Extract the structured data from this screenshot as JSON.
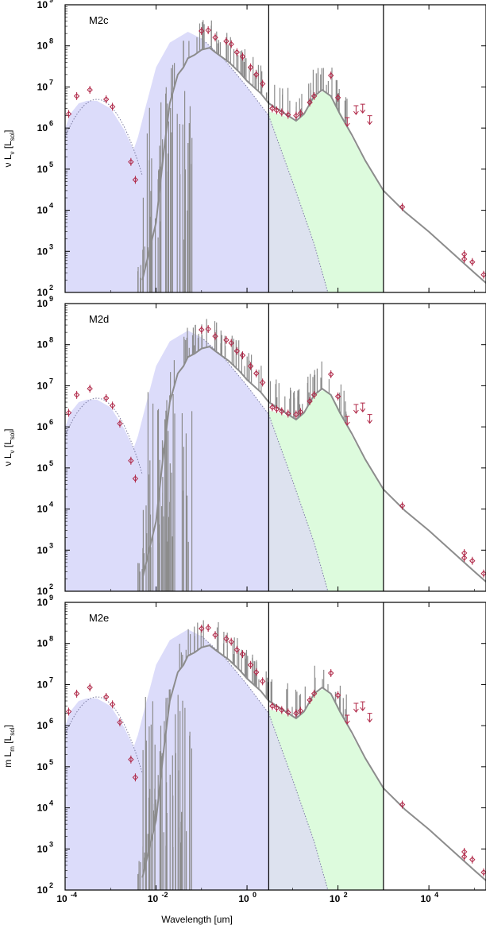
{
  "chart_data": {
    "type": "line",
    "x_scale": "log",
    "y_scale": "log",
    "xlim": [
      0.0001,
      180000
    ],
    "ylim": [
      100,
      1000000000
    ],
    "xlabel": "Wavelength [um]",
    "x_ticks": [
      "10^-4",
      "10^-2",
      "10^0",
      "10^2",
      "10^4"
    ],
    "y_ticks": [
      "10^2",
      "10^3",
      "10^4",
      "10^5",
      "10^6",
      "10^7",
      "10^8",
      "10^9"
    ],
    "vertical_lines": [
      3,
      1000
    ],
    "colors": {
      "sed_line": "#8c8c8c",
      "stellar_fill": "#dcdcfa",
      "dust_fill": "#ddfbdd",
      "overlap_fill": "#dde2ef",
      "observed_points": "#b02848",
      "stellar_curve": "#7a7aa0"
    },
    "panels": [
      {
        "label": "M2c",
        "ylabel": "ν L_ν [L_sol]",
        "ylabel_main": "ν L",
        "ylabel_sub": "ν",
        "ylabel_unit": "[L",
        "ylabel_unit_sub": "sol",
        "ylabel_close": "]",
        "points": [
          {
            "x": 0.00012,
            "y": 2200000
          },
          {
            "x": 0.00018,
            "y": 6000000
          },
          {
            "x": 0.00035,
            "y": 8500000
          },
          {
            "x": 0.0008,
            "y": 5000000
          },
          {
            "x": 0.0011,
            "y": 3300000
          },
          {
            "x": 0.0028,
            "y": 150000
          },
          {
            "x": 0.0035,
            "y": 55000
          },
          {
            "x": 0.1,
            "y": 230000000
          },
          {
            "x": 0.14,
            "y": 240000000
          },
          {
            "x": 0.2,
            "y": 160000000
          },
          {
            "x": 0.35,
            "y": 130000000
          },
          {
            "x": 0.45,
            "y": 110000000
          },
          {
            "x": 0.6,
            "y": 70000000
          },
          {
            "x": 0.8,
            "y": 55000000
          },
          {
            "x": 1.2,
            "y": 30000000
          },
          {
            "x": 1.6,
            "y": 20000000
          },
          {
            "x": 2.2,
            "y": 12000000
          },
          {
            "x": 3.6,
            "y": 3000000
          },
          {
            "x": 4.5,
            "y": 2700000
          },
          {
            "x": 5.8,
            "y": 2400000
          },
          {
            "x": 8,
            "y": 2100000
          },
          {
            "x": 12,
            "y": 2000000
          },
          {
            "x": 15,
            "y": 2300000
          },
          {
            "x": 24,
            "y": 4200000
          },
          {
            "x": 30,
            "y": 6000000
          },
          {
            "x": 70,
            "y": 19000000
          },
          {
            "x": 100,
            "y": 5500000
          },
          {
            "x": 2600,
            "y": 12000
          },
          {
            "x": 60000,
            "y": 850
          },
          {
            "x": 60000,
            "y": 650
          },
          {
            "x": 90000,
            "y": 550
          },
          {
            "x": 160000,
            "y": 270
          }
        ],
        "upper_limits": [
          {
            "x": 160,
            "y": 1800000
          },
          {
            "x": 250,
            "y": 3500000
          },
          {
            "x": 350,
            "y": 3800000
          },
          {
            "x": 500,
            "y": 2000000
          }
        ]
      },
      {
        "label": "M2d",
        "ylabel": "ν L_ν [L_sol]",
        "ylabel_main": "ν L",
        "ylabel_sub": "ν",
        "ylabel_unit": "[L",
        "ylabel_unit_sub": "sol",
        "ylabel_close": "]",
        "points": [
          {
            "x": 0.00012,
            "y": 2200000
          },
          {
            "x": 0.00018,
            "y": 6000000
          },
          {
            "x": 0.00035,
            "y": 8500000
          },
          {
            "x": 0.0008,
            "y": 5000000
          },
          {
            "x": 0.0011,
            "y": 3300000
          },
          {
            "x": 0.0016,
            "y": 1200000
          },
          {
            "x": 0.0028,
            "y": 150000
          },
          {
            "x": 0.0035,
            "y": 55000
          },
          {
            "x": 0.1,
            "y": 230000000
          },
          {
            "x": 0.14,
            "y": 240000000
          },
          {
            "x": 0.2,
            "y": 160000000
          },
          {
            "x": 0.35,
            "y": 130000000
          },
          {
            "x": 0.45,
            "y": 110000000
          },
          {
            "x": 0.6,
            "y": 70000000
          },
          {
            "x": 0.8,
            "y": 55000000
          },
          {
            "x": 1.2,
            "y": 30000000
          },
          {
            "x": 1.6,
            "y": 20000000
          },
          {
            "x": 2.2,
            "y": 12000000
          },
          {
            "x": 3.6,
            "y": 3000000
          },
          {
            "x": 4.5,
            "y": 2700000
          },
          {
            "x": 5.8,
            "y": 2400000
          },
          {
            "x": 8,
            "y": 2100000
          },
          {
            "x": 12,
            "y": 2000000
          },
          {
            "x": 15,
            "y": 2300000
          },
          {
            "x": 24,
            "y": 4200000
          },
          {
            "x": 30,
            "y": 6000000
          },
          {
            "x": 70,
            "y": 19000000
          },
          {
            "x": 100,
            "y": 5500000
          },
          {
            "x": 2600,
            "y": 12000
          },
          {
            "x": 60000,
            "y": 850
          },
          {
            "x": 60000,
            "y": 650
          },
          {
            "x": 90000,
            "y": 550
          },
          {
            "x": 160000,
            "y": 270
          }
        ],
        "upper_limits": [
          {
            "x": 160,
            "y": 1800000
          },
          {
            "x": 250,
            "y": 3500000
          },
          {
            "x": 350,
            "y": 3800000
          },
          {
            "x": 500,
            "y": 2000000
          }
        ]
      },
      {
        "label": "M2e",
        "ylabel": "m L_m [L_sol]",
        "ylabel_main": "m L",
        "ylabel_sub": "m",
        "ylabel_unit": "[L",
        "ylabel_unit_sub": "sol",
        "ylabel_close": "]",
        "points": [
          {
            "x": 0.00012,
            "y": 2200000
          },
          {
            "x": 0.00018,
            "y": 6000000
          },
          {
            "x": 0.00035,
            "y": 8500000
          },
          {
            "x": 0.0008,
            "y": 5000000
          },
          {
            "x": 0.0011,
            "y": 3300000
          },
          {
            "x": 0.0016,
            "y": 1200000
          },
          {
            "x": 0.0028,
            "y": 150000
          },
          {
            "x": 0.0035,
            "y": 55000
          },
          {
            "x": 0.1,
            "y": 230000000
          },
          {
            "x": 0.14,
            "y": 240000000
          },
          {
            "x": 0.2,
            "y": 160000000
          },
          {
            "x": 0.35,
            "y": 130000000
          },
          {
            "x": 0.45,
            "y": 110000000
          },
          {
            "x": 0.6,
            "y": 70000000
          },
          {
            "x": 0.8,
            "y": 55000000
          },
          {
            "x": 1.2,
            "y": 30000000
          },
          {
            "x": 1.6,
            "y": 20000000
          },
          {
            "x": 2.2,
            "y": 12000000
          },
          {
            "x": 3.6,
            "y": 3000000
          },
          {
            "x": 4.5,
            "y": 2700000
          },
          {
            "x": 5.8,
            "y": 2400000
          },
          {
            "x": 8,
            "y": 2100000
          },
          {
            "x": 12,
            "y": 2000000
          },
          {
            "x": 15,
            "y": 2300000
          },
          {
            "x": 24,
            "y": 4200000
          },
          {
            "x": 30,
            "y": 6000000
          },
          {
            "x": 70,
            "y": 19000000
          },
          {
            "x": 100,
            "y": 5500000
          },
          {
            "x": 2600,
            "y": 12000
          },
          {
            "x": 60000,
            "y": 850
          },
          {
            "x": 60000,
            "y": 650
          },
          {
            "x": 90000,
            "y": 550
          },
          {
            "x": 160000,
            "y": 270
          }
        ],
        "upper_limits": [
          {
            "x": 160,
            "y": 1800000
          },
          {
            "x": 250,
            "y": 3500000
          },
          {
            "x": 350,
            "y": 3800000
          },
          {
            "x": 500,
            "y": 2000000
          }
        ]
      }
    ]
  }
}
